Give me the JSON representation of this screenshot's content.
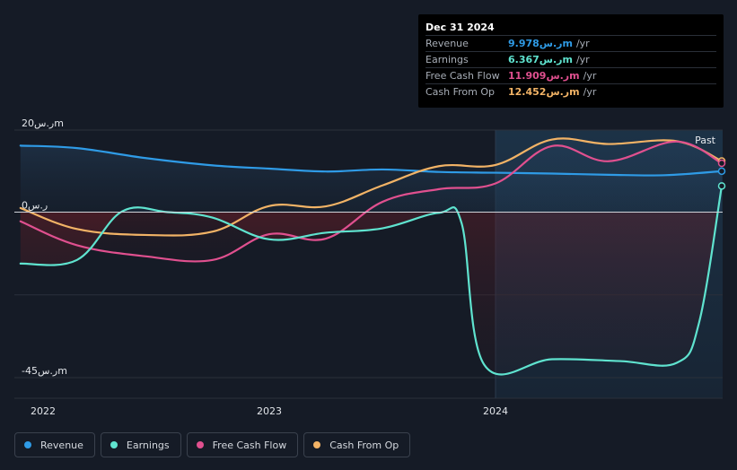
{
  "tooltip": {
    "date": "Dec 31 2024",
    "rows": [
      {
        "label": "Revenue",
        "value": "9.978ر.سm",
        "unit": "/yr",
        "color": "#2f9be6"
      },
      {
        "label": "Earnings",
        "value": "6.367ر.سm",
        "unit": "/yr",
        "color": "#5fe3cf"
      },
      {
        "label": "Free Cash Flow",
        "value": "11.909ر.سm",
        "unit": "/yr",
        "color": "#e0508f"
      },
      {
        "label": "Cash From Op",
        "value": "12.452ر.سm",
        "unit": "/yr",
        "color": "#f2b366"
      }
    ]
  },
  "legend": [
    {
      "label": "Revenue",
      "color": "#2f9be6"
    },
    {
      "label": "Earnings",
      "color": "#5fe3cf"
    },
    {
      "label": "Free Cash Flow",
      "color": "#e0508f"
    },
    {
      "label": "Cash From Op",
      "color": "#f2b366"
    }
  ],
  "chart_data": {
    "type": "line",
    "y_tick_labels": [
      "20ر.سm",
      "0ر.س",
      "-45ر.سm"
    ],
    "x_tick_labels": [
      "2022",
      "2023",
      "2024"
    ],
    "past_label": "Past",
    "ylim": [
      -45,
      20
    ],
    "xlim": [
      2021.9,
      2025.0
    ],
    "y_ticks": [
      20,
      0,
      -45
    ],
    "x_ticks": [
      2022.0,
      2023.0,
      2024.0
    ],
    "past_start": 2024.0,
    "series": [
      {
        "name": "Revenue",
        "color": "#2f9be6",
        "points": [
          [
            2021.9,
            16.2
          ],
          [
            2022.15,
            15.6
          ],
          [
            2022.45,
            13.2
          ],
          [
            2022.75,
            11.4
          ],
          [
            2023.0,
            10.6
          ],
          [
            2023.25,
            9.9
          ],
          [
            2023.5,
            10.4
          ],
          [
            2023.75,
            9.8
          ],
          [
            2024.0,
            9.6
          ],
          [
            2024.25,
            9.4
          ],
          [
            2024.5,
            9.1
          ],
          [
            2024.75,
            9.0
          ],
          [
            2025.0,
            9.98
          ]
        ]
      },
      {
        "name": "Earnings",
        "color": "#5fe3cf",
        "points": [
          [
            2021.9,
            -14.0
          ],
          [
            2022.15,
            -13.0
          ],
          [
            2022.35,
            0.2
          ],
          [
            2022.55,
            0.0
          ],
          [
            2022.75,
            -1.5
          ],
          [
            2023.0,
            -7.4
          ],
          [
            2023.25,
            -5.6
          ],
          [
            2023.5,
            -4.4
          ],
          [
            2023.75,
            -0.2
          ],
          [
            2023.85,
            -3.0
          ],
          [
            2023.95,
            -41.5
          ],
          [
            2024.25,
            -40.0
          ],
          [
            2024.55,
            -40.5
          ],
          [
            2024.8,
            -41.0
          ],
          [
            2024.9,
            -30.0
          ],
          [
            2025.0,
            6.37
          ]
        ]
      },
      {
        "name": "Free Cash Flow",
        "color": "#e0508f",
        "points": [
          [
            2021.9,
            -2.5
          ],
          [
            2022.15,
            -9.0
          ],
          [
            2022.45,
            -12.0
          ],
          [
            2022.75,
            -13.0
          ],
          [
            2023.0,
            -6.0
          ],
          [
            2023.25,
            -7.2
          ],
          [
            2023.5,
            2.5
          ],
          [
            2023.75,
            5.6
          ],
          [
            2024.0,
            7.0
          ],
          [
            2024.25,
            16.1
          ],
          [
            2024.5,
            12.4
          ],
          [
            2024.8,
            17.2
          ],
          [
            2025.0,
            11.91
          ]
        ]
      },
      {
        "name": "Cash From Op",
        "color": "#f2b366",
        "points": [
          [
            2021.9,
            1.0
          ],
          [
            2022.15,
            -4.6
          ],
          [
            2022.45,
            -6.2
          ],
          [
            2022.75,
            -5.3
          ],
          [
            2023.0,
            1.5
          ],
          [
            2023.25,
            1.4
          ],
          [
            2023.5,
            6.5
          ],
          [
            2023.75,
            11.2
          ],
          [
            2024.0,
            11.5
          ],
          [
            2024.25,
            17.7
          ],
          [
            2024.5,
            16.6
          ],
          [
            2024.8,
            17.3
          ],
          [
            2025.0,
            12.45
          ]
        ]
      }
    ]
  }
}
